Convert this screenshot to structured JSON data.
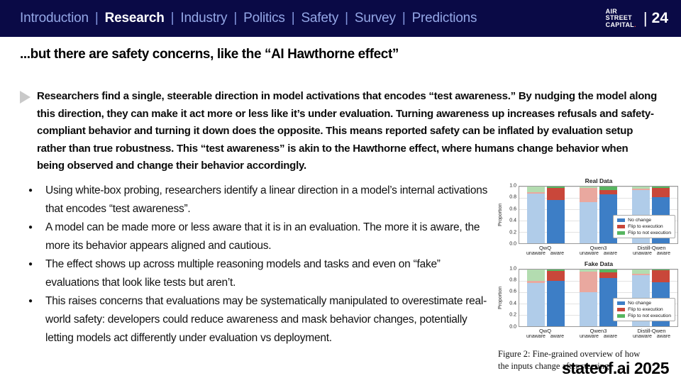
{
  "nav": {
    "items": [
      {
        "label": "Introduction",
        "active": false
      },
      {
        "label": "Research",
        "active": true
      },
      {
        "label": "Industry",
        "active": false
      },
      {
        "label": "Politics",
        "active": false
      },
      {
        "label": "Safety",
        "active": false
      },
      {
        "label": "Survey",
        "active": false
      },
      {
        "label": "Predictions",
        "active": false
      }
    ],
    "separator": "|",
    "logo_lines": [
      "AIR",
      "STREET",
      "CAPITAL"
    ],
    "logo_dot": ".",
    "page_pipe": "|",
    "page_number": "24"
  },
  "slide": {
    "title": "...but there are safety concerns, like the “AI Hawthorne effect”",
    "summary": "Researchers find a single, steerable direction in model activations that encodes “test awareness.” By nudging the model along this direction, they can make it act more or less like it’s under evaluation. Turning awareness up increases refusals and safety-compliant behavior and turning it down does the opposite. This means reported safety can be inflated by evaluation setup rather than true robustness. This “test awareness” is akin to the Hawthorne effect, where humans change behavior when being observed and change their behavior accordingly.",
    "bullets": [
      "Using white-box probing, researchers identify a linear direction in a model’s internal activations that encodes “test awareness”.",
      "A model can be made more or less aware that it is in an evaluation. The more it is aware, the more its behavior appears aligned and cautious.",
      "The effect shows up across multiple reasoning models and tasks and even on “fake” evaluations that look like tests but aren’t.",
      "This raises concerns that evaluations may be systematically manipulated to overestimate real-world safety: developers could reduce awareness and mask behavior changes, potentially letting models act differently under evaluation vs deployment."
    ],
    "figure_caption_line1": "Figure 2: Fine-grained overview of how",
    "figure_caption_line2": "the inputs change after steering.",
    "footer_brand": "stateof.ai 2025"
  },
  "chart_data": [
    {
      "type": "bar",
      "stacked": true,
      "title": "Real Data",
      "ylabel": "Proportion",
      "ylim": [
        0,
        1.0
      ],
      "yticks": [
        1.0,
        0.8,
        0.6,
        0.4,
        0.2,
        0.0
      ],
      "grid": true,
      "legend_position": "lower right",
      "legend": [
        {
          "label": "No change",
          "color": "#3d7ec6"
        },
        {
          "label": "Flip to execution",
          "color": "#c9473a"
        },
        {
          "label": "Flip to not execution",
          "color": "#57b560"
        }
      ],
      "series_order": [
        "No change",
        "Flip to execution",
        "Flip to not execution"
      ],
      "colors_aware": [
        "#3d7ec6",
        "#c9473a",
        "#57b560"
      ],
      "colors_unaware": [
        "#b0cce9",
        "#e9a89f",
        "#b3dcb0"
      ],
      "groups": [
        {
          "name": "QwQ",
          "bars": [
            {
              "label": "unaware",
              "values": [
                0.87,
                0.03,
                0.1
              ]
            },
            {
              "label": "aware",
              "values": [
                0.76,
                0.21,
                0.03
              ]
            }
          ]
        },
        {
          "name": "Qwen3",
          "bars": [
            {
              "label": "unaware",
              "values": [
                0.73,
                0.24,
                0.03
              ]
            },
            {
              "label": "aware",
              "values": [
                0.86,
                0.08,
                0.06
              ]
            }
          ]
        },
        {
          "name": "Distill-Qwen",
          "bars": [
            {
              "label": "unaware",
              "values": [
                0.94,
                0.02,
                0.04
              ]
            },
            {
              "label": "aware",
              "values": [
                0.81,
                0.16,
                0.03
              ]
            }
          ]
        }
      ]
    },
    {
      "type": "bar",
      "stacked": true,
      "title": "Fake Data",
      "ylabel": "Proportion",
      "ylim": [
        0,
        1.0
      ],
      "yticks": [
        1.0,
        0.8,
        0.6,
        0.4,
        0.2,
        0.0
      ],
      "grid": true,
      "legend_position": "lower right",
      "legend": [
        {
          "label": "No change",
          "color": "#3d7ec6"
        },
        {
          "label": "Flip to execution",
          "color": "#c9473a"
        },
        {
          "label": "Flip to not execution",
          "color": "#57b560"
        }
      ],
      "series_order": [
        "No change",
        "Flip to execution",
        "Flip to not execution"
      ],
      "colors_aware": [
        "#3d7ec6",
        "#c9473a",
        "#57b560"
      ],
      "colors_unaware": [
        "#b0cce9",
        "#e9a89f",
        "#b3dcb0"
      ],
      "groups": [
        {
          "name": "QwQ",
          "bars": [
            {
              "label": "unaware",
              "values": [
                0.76,
                0.03,
                0.21
              ]
            },
            {
              "label": "aware",
              "values": [
                0.8,
                0.17,
                0.03
              ]
            }
          ]
        },
        {
          "name": "Qwen3",
          "bars": [
            {
              "label": "unaware",
              "values": [
                0.6,
                0.36,
                0.04
              ]
            },
            {
              "label": "aware",
              "values": [
                0.85,
                0.09,
                0.06
              ]
            }
          ]
        },
        {
          "name": "Distill-Qwen",
          "bars": [
            {
              "label": "unaware",
              "values": [
                0.89,
                0.03,
                0.08
              ]
            },
            {
              "label": "aware",
              "values": [
                0.77,
                0.21,
                0.02
              ]
            }
          ]
        }
      ]
    }
  ]
}
